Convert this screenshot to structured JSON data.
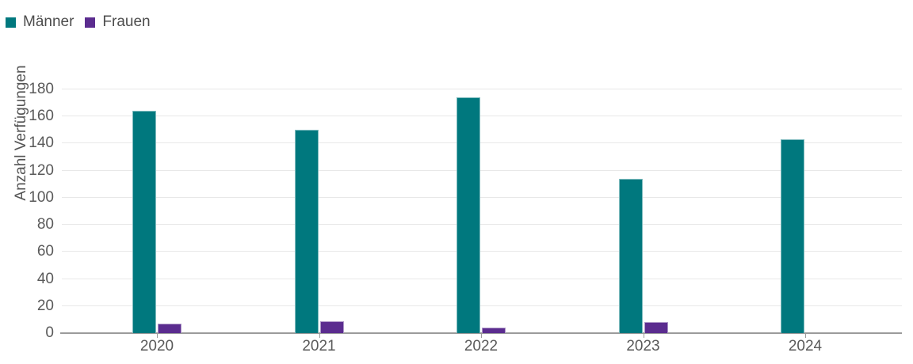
{
  "chart_data": {
    "type": "bar",
    "title": "",
    "categories": [
      "2020",
      "2021",
      "2022",
      "2023",
      "2024"
    ],
    "series": [
      {
        "name": "Männer",
        "color": "#00787E",
        "values": [
          164,
          150,
          174,
          114,
          143
        ]
      },
      {
        "name": "Frauen",
        "color": "#5B2C8F",
        "values": [
          7,
          9,
          4,
          8,
          0
        ]
      }
    ],
    "xlabel": "",
    "ylabel": "Anzahl Verfügungen",
    "ylim": [
      0,
      180
    ],
    "ytick_step": 20,
    "yticks": [
      0,
      20,
      40,
      60,
      80,
      100,
      120,
      140,
      160,
      180
    ],
    "grid": true,
    "legend_position": "top-left",
    "colors": {
      "grid_line": "#e8e8e8",
      "axis_line": "#9b9b9b",
      "tick_text": "#5a5a5a",
      "legend_text": "#4d4d4d",
      "background": "#ffffff"
    }
  }
}
